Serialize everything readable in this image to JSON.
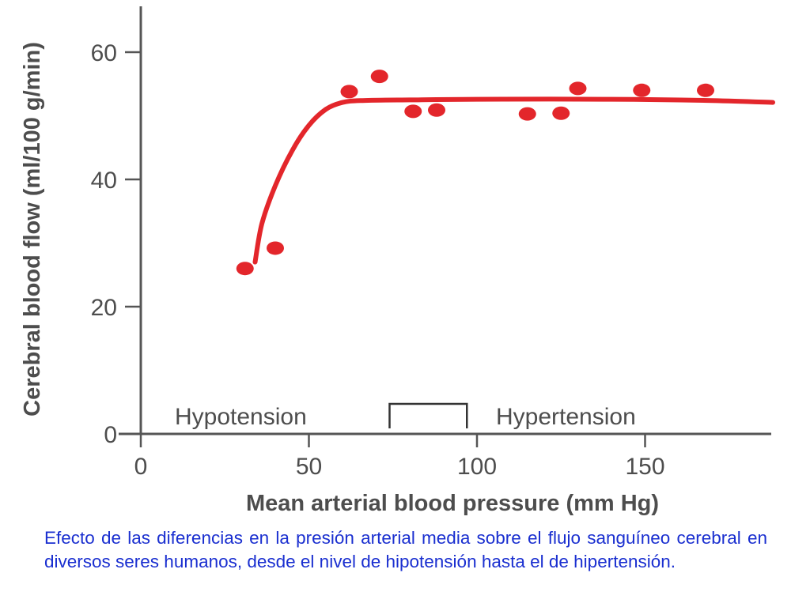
{
  "chart_data": {
    "type": "scatter",
    "title": "",
    "xlabel": "Mean arterial blood pressure (mm Hg)",
    "ylabel": "Cerebral blood flow (ml/100 g/min)",
    "xlim": [
      0,
      190
    ],
    "ylim": [
      0,
      65
    ],
    "x_ticks": [
      0,
      50,
      100,
      150
    ],
    "y_ticks": [
      0,
      20,
      40,
      60
    ],
    "grid": false,
    "series": [
      {
        "kind": "points",
        "color": "#e3262b",
        "points": [
          {
            "x": 31,
            "y": 26
          },
          {
            "x": 40,
            "y": 29.2
          },
          {
            "x": 62,
            "y": 53.8
          },
          {
            "x": 71,
            "y": 56.2
          },
          {
            "x": 81,
            "y": 50.7
          },
          {
            "x": 88,
            "y": 50.9
          },
          {
            "x": 115,
            "y": 50.3
          },
          {
            "x": 125,
            "y": 50.4
          },
          {
            "x": 130,
            "y": 54.3
          },
          {
            "x": 149,
            "y": 54
          },
          {
            "x": 168,
            "y": 54
          }
        ]
      },
      {
        "kind": "curve",
        "color": "#e3262b",
        "points": [
          {
            "x": 34,
            "y": 27
          },
          {
            "x": 36,
            "y": 33
          },
          {
            "x": 40,
            "y": 39
          },
          {
            "x": 45,
            "y": 44.5
          },
          {
            "x": 50,
            "y": 48.5
          },
          {
            "x": 55,
            "y": 51
          },
          {
            "x": 60,
            "y": 52.1
          },
          {
            "x": 66,
            "y": 52.4
          },
          {
            "x": 80,
            "y": 52.5
          },
          {
            "x": 100,
            "y": 52.6
          },
          {
            "x": 140,
            "y": 52.6
          },
          {
            "x": 170,
            "y": 52.4
          },
          {
            "x": 188,
            "y": 52.1
          }
        ]
      }
    ],
    "regions": {
      "left_label": "Hypotension",
      "right_label": "Hypertension",
      "bracket_range": [
        74,
        97
      ]
    }
  },
  "caption": "Efecto de las diferencias en la presión arterial media sobre el flujo sanguíneo cerebral en diversos seres humanos, desde el nivel de hipotensión hasta el de hipertensión."
}
